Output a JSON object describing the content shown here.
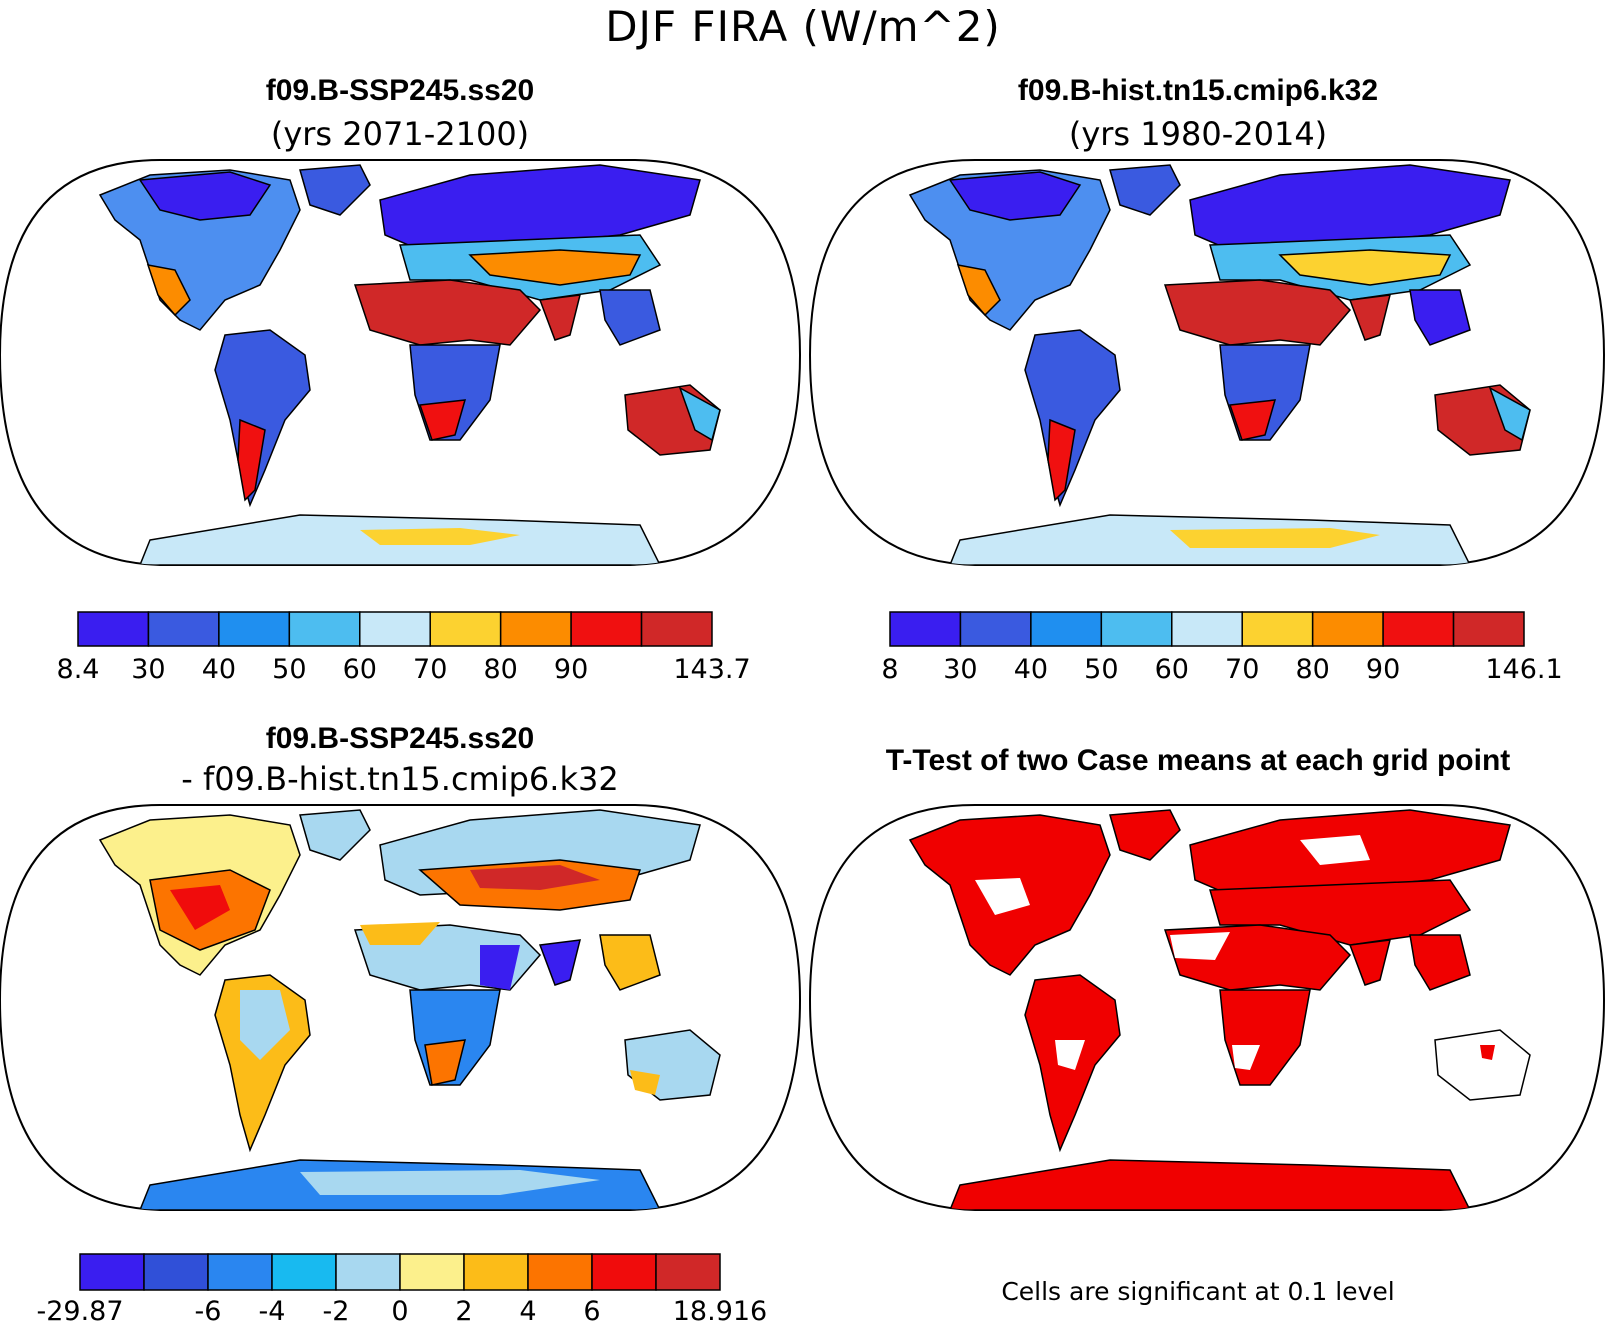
{
  "figure": {
    "title": "DJF FIRA (W/m^2)"
  },
  "panels": {
    "top_left": {
      "title": "f09.B-SSP245.ss20",
      "subtitle": "(yrs 2071-2100)"
    },
    "top_right": {
      "title": "f09.B-hist.tn15.cmip6.k32",
      "subtitle": "(yrs 1980-2014)"
    },
    "bottom_left": {
      "title": "f09.B-SSP245.ss20",
      "subtitle": "- f09.B-hist.tn15.cmip6.k32"
    },
    "bottom_right": {
      "title": "T-Test of two Case means at each grid point",
      "note": "Cells are significant at 0.1 level"
    }
  },
  "colorbars": {
    "top_left": {
      "labels": [
        "8.4",
        "30",
        "40",
        "50",
        "60",
        "70",
        "80",
        "90",
        "143.7"
      ],
      "colors": [
        "#3a1ef0",
        "#3a5ae0",
        "#1f8ff0",
        "#4dbdf0",
        "#c8e8f8",
        "#fcd230",
        "#fc8c00",
        "#f01010",
        "#d02828"
      ]
    },
    "top_right": {
      "labels": [
        "8",
        "30",
        "40",
        "50",
        "60",
        "70",
        "80",
        "90",
        "146.1"
      ],
      "colors": [
        "#3a1ef0",
        "#3a5ae0",
        "#1f8ff0",
        "#4dbdf0",
        "#c8e8f8",
        "#fcd230",
        "#fc8c00",
        "#f01010",
        "#d02828"
      ]
    },
    "bottom_left": {
      "labels": [
        "-29.87",
        "-6",
        "-4",
        "-2",
        "0",
        "2",
        "4",
        "6",
        "18.916"
      ],
      "colors": [
        "#3a1ef0",
        "#3050d8",
        "#2a86f0",
        "#18baf0",
        "#a8d8f0",
        "#fcf08c",
        "#fcbc18",
        "#fc7400",
        "#f00c0c",
        "#d02828"
      ]
    }
  },
  "colors": {
    "significant": "#f00000",
    "ocean": "#ffffff",
    "coast": "#000000"
  }
}
